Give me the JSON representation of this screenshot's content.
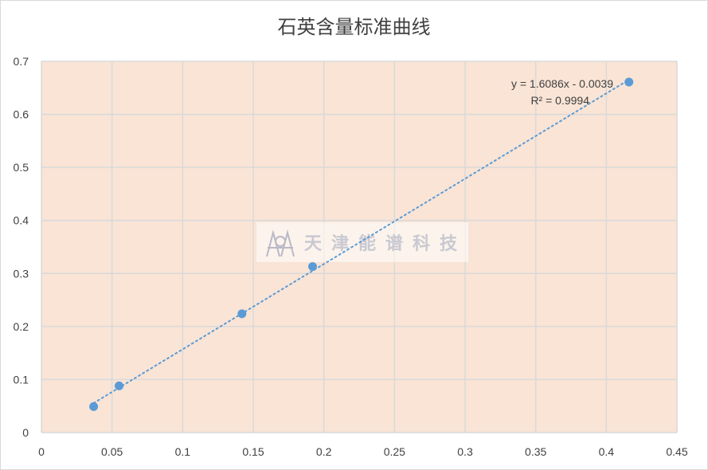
{
  "chart_data": {
    "type": "scatter",
    "title": "石英含量标准曲线",
    "xlabel": "",
    "ylabel": "",
    "xlim": [
      0,
      0.45
    ],
    "ylim": [
      0,
      0.7
    ],
    "x_ticks": [
      "0",
      "0.05",
      "0.1",
      "0.15",
      "0.2",
      "0.25",
      "0.3",
      "0.35",
      "0.4",
      "0.45"
    ],
    "y_ticks": [
      "0",
      "0.1",
      "0.2",
      "0.3",
      "0.4",
      "0.5",
      "0.6",
      "0.7"
    ],
    "grid": true,
    "legend": "none",
    "series": [
      {
        "x": [
          0.037,
          0.055,
          0.142,
          0.192,
          0.416
        ],
        "y": [
          0.049,
          0.088,
          0.224,
          0.313,
          0.661
        ]
      }
    ],
    "trendline": {
      "type": "linear",
      "slope": 1.6086,
      "intercept": -0.0039,
      "x_range": [
        0.037,
        0.416
      ],
      "equation": "y = 1.6086x - 0.0039",
      "r_squared": "R² = 0.9994"
    },
    "colors": {
      "plot_bg": "#f9e4d6",
      "grid": "#d9d9d9",
      "marker": "#5b9bd5",
      "trendline": "#5b9bd5"
    },
    "watermark": "天津能谱科技"
  }
}
